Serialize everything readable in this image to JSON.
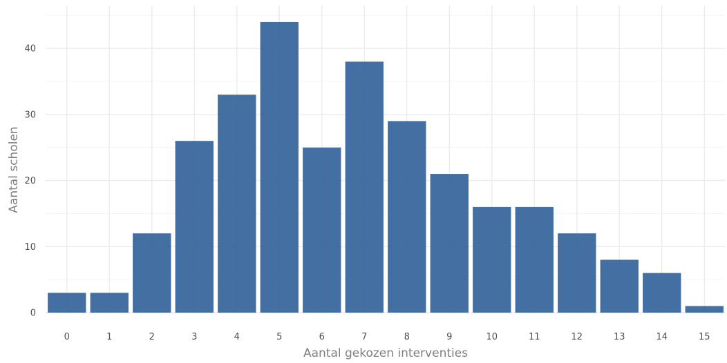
{
  "chart_data": {
    "type": "bar",
    "title": "",
    "xlabel": "Aantal gekozen interventies",
    "ylabel": "Aantal scholen",
    "categories": [
      "0",
      "1",
      "2",
      "3",
      "4",
      "5",
      "6",
      "7",
      "8",
      "9",
      "10",
      "11",
      "12",
      "13",
      "14",
      "15"
    ],
    "values": [
      3,
      3,
      12,
      26,
      33,
      44,
      25,
      38,
      29,
      21,
      16,
      16,
      12,
      8,
      6,
      1
    ],
    "ylim": [
      0,
      46.5
    ],
    "yticks": [
      0,
      10,
      20,
      30,
      40
    ],
    "grid": true,
    "legend": "none",
    "bar_color": "#2f5f99"
  }
}
